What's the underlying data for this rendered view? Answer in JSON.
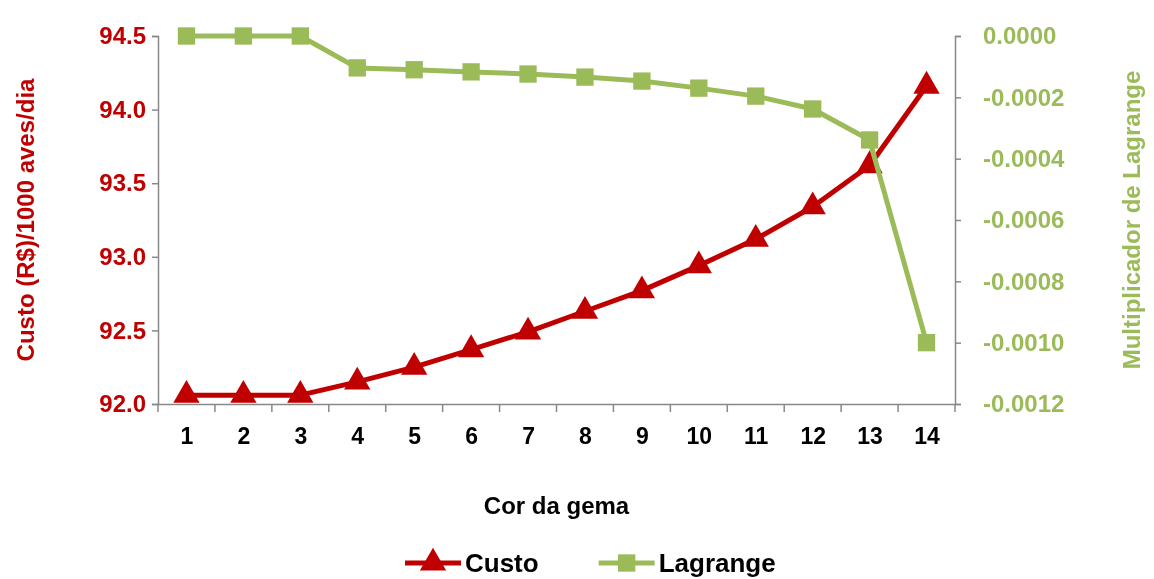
{
  "chart_data": {
    "type": "line",
    "xlabel": "Cor da gema",
    "ylabel": "Custo (R$)/1000 aves/dia",
    "y2label": "Multiplicador de Lagrange",
    "categories": [
      "1",
      "2",
      "3",
      "4",
      "5",
      "6",
      "7",
      "8",
      "9",
      "10",
      "11",
      "12",
      "13",
      "14"
    ],
    "series": [
      {
        "name": "Custo",
        "color": "#c00000",
        "marker": "triangle",
        "values": [
          92.06,
          92.06,
          92.06,
          92.15,
          92.25,
          92.37,
          92.49,
          92.63,
          92.77,
          92.94,
          93.12,
          93.34,
          93.62,
          94.16
        ]
      },
      {
        "name": "Lagrange",
        "color": "#9bbb59",
        "marker": "square",
        "axis": "y2",
        "values": [
          0,
          0,
          0,
          -0.000104,
          -0.00011,
          -0.000117,
          -0.000124,
          -0.000134,
          -0.000147,
          -0.00017,
          -0.000196,
          -0.000238,
          -0.000339,
          -0.001
        ]
      }
    ],
    "ylim": [
      92.0,
      94.5
    ],
    "yticks": [
      {
        "value": 92,
        "label": "92.0"
      },
      {
        "value": 92.5,
        "label": "92.5"
      },
      {
        "value": 93,
        "label": "93.0"
      },
      {
        "value": 93.5,
        "label": "93.5"
      },
      {
        "value": 94,
        "label": "94.0"
      },
      {
        "value": 94.5,
        "label": "94.5"
      }
    ],
    "y2lim": [
      -0.0012,
      0
    ],
    "y2ticks": [
      {
        "value": -0.0012,
        "label": "-0.0012"
      },
      {
        "value": -0.001,
        "label": "-0.0010"
      },
      {
        "value": -0.0008,
        "label": "-0.0008"
      },
      {
        "value": -0.0006,
        "label": "-0.0006"
      },
      {
        "value": -0.0004,
        "label": "-0.0004"
      },
      {
        "value": -0.0002,
        "label": "-0.0002"
      },
      {
        "value": 0,
        "label": "0.0000"
      }
    ],
    "grid": false,
    "legend": "bottom",
    "line_style": "solid"
  }
}
